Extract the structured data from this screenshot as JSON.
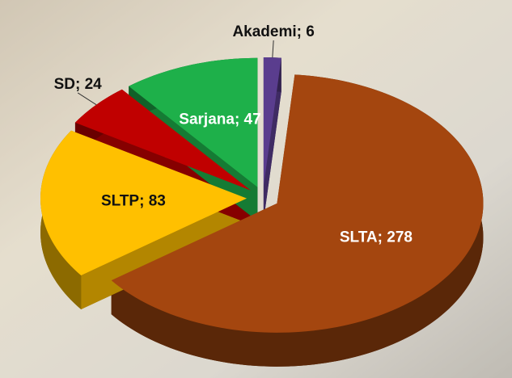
{
  "chart_data": {
    "type": "pie3d",
    "categories": [
      "Akademi",
      "SLTA",
      "SLTP",
      "SD",
      "Sarjana"
    ],
    "values": [
      6,
      278,
      83,
      24,
      47
    ],
    "label_separator": "; ",
    "colors": [
      "#5a3d8e",
      "#a4460f",
      "#ffc000",
      "#c00000",
      "#1eb04a"
    ]
  }
}
